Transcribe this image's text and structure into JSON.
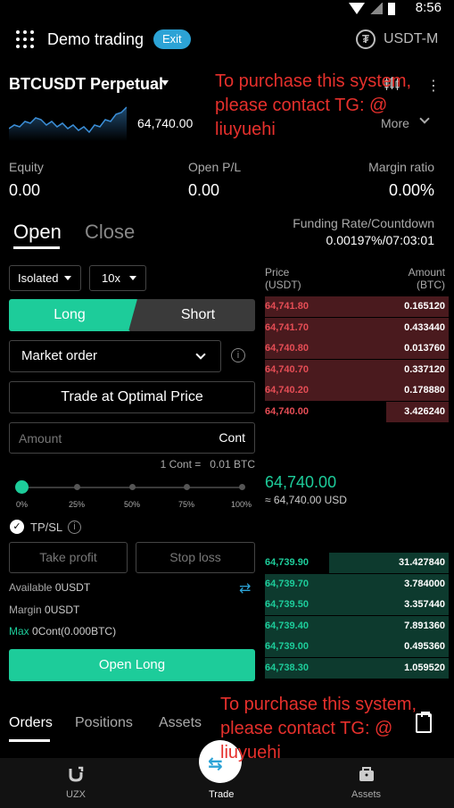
{
  "statusbar": {
    "time": "8:56"
  },
  "header": {
    "title": "Demo trading",
    "exit_label": "Exit",
    "currency_symbol": "₮",
    "currency_label": "USDT-M"
  },
  "pair": {
    "name": "BTCUSDT Perpetual",
    "price": "64,740.00",
    "more_label": "More",
    "more_dots": "⋮"
  },
  "watermark": {
    "line1": "To purchase this system,",
    "line2": "please contact TG: @",
    "line3": "liuyuehi"
  },
  "stats": {
    "equity_label": "Equity",
    "equity_value": "0.00",
    "pnl_label": "Open P/L",
    "pnl_value": "0.00",
    "margin_label": "Margin ratio",
    "margin_value": "0.00%"
  },
  "funding": {
    "label": "Funding Rate/Countdown",
    "value": "0.00197%/07:03:01"
  },
  "tabs": {
    "open": "Open",
    "close": "Close"
  },
  "form": {
    "margin_mode": "Isolated",
    "leverage": "10x",
    "long_label": "Long",
    "short_label": "Short",
    "order_type": "Market order",
    "info_glyph": "i",
    "optimal_label": "Trade at Optimal Price",
    "amount_placeholder": "Amount",
    "amount_unit": "Cont",
    "cont_note": "1 Cont =",
    "cont_value": "0.01 BTC",
    "slider_percent": 0,
    "slider_labels": [
      "0%",
      "25%",
      "50%",
      "75%",
      "100%"
    ],
    "tpsl_check": "✓",
    "tpsl_label": "TP/SL",
    "take_profit": "Take profit",
    "stop_loss": "Stop loss",
    "available_label": "Available",
    "available_value": "0USDT",
    "margin_label": "Margin",
    "margin_value": "0USDT",
    "max_label": "Max",
    "max_value": "0Cont(0.000BTC)",
    "transfer_glyph": "⇄",
    "open_long_label": "Open Long"
  },
  "orderbook": {
    "price_header": "Price",
    "price_unit": "(USDT)",
    "amount_header": "Amount",
    "amount_unit": "(BTC)",
    "asks": [
      {
        "price": "64,741.80",
        "qty": "0.165120",
        "depth": 1.0
      },
      {
        "price": "64,741.70",
        "qty": "0.433440",
        "depth": 1.0
      },
      {
        "price": "64,740.80",
        "qty": "0.013760",
        "depth": 1.0
      },
      {
        "price": "64,740.70",
        "qty": "0.337120",
        "depth": 1.0
      },
      {
        "price": "64,740.20",
        "qty": "0.178880",
        "depth": 1.0
      },
      {
        "price": "64,740.00",
        "qty": "3.426240",
        "depth": 0.34
      }
    ],
    "mid_price": "64,740.00",
    "mid_usd": "≈ 64,740.00 USD",
    "bids": [
      {
        "price": "64,739.90",
        "qty": "31.427840",
        "depth": 0.65
      },
      {
        "price": "64,739.70",
        "qty": "3.784000",
        "depth": 1.0
      },
      {
        "price": "64,739.50",
        "qty": "3.357440",
        "depth": 1.0
      },
      {
        "price": "64,739.40",
        "qty": "7.891360",
        "depth": 1.0
      },
      {
        "price": "64,739.00",
        "qty": "0.495360",
        "depth": 1.0
      },
      {
        "price": "64,738.30",
        "qty": "1.059520",
        "depth": 1.0
      }
    ]
  },
  "bottom_tabs": {
    "orders": "Orders",
    "positions": "Positions",
    "assets": "Assets"
  },
  "nav": {
    "uzx": "UZX",
    "trade": "Trade",
    "assets": "Assets",
    "trade_glyph": "⇆"
  },
  "colors": {
    "long": "#1dcc9a",
    "short_text": "#e54d55",
    "accent": "#2ca3d6",
    "watermark": "#e6302c"
  },
  "icons": [
    "menu-grid-icon",
    "tether-icon",
    "candlestick-icon",
    "chevron-down-icon",
    "info-icon",
    "check-icon",
    "transfer-icon",
    "clipboard-icon",
    "uzx-logo-icon",
    "trade-icon",
    "wallet-icon"
  ]
}
